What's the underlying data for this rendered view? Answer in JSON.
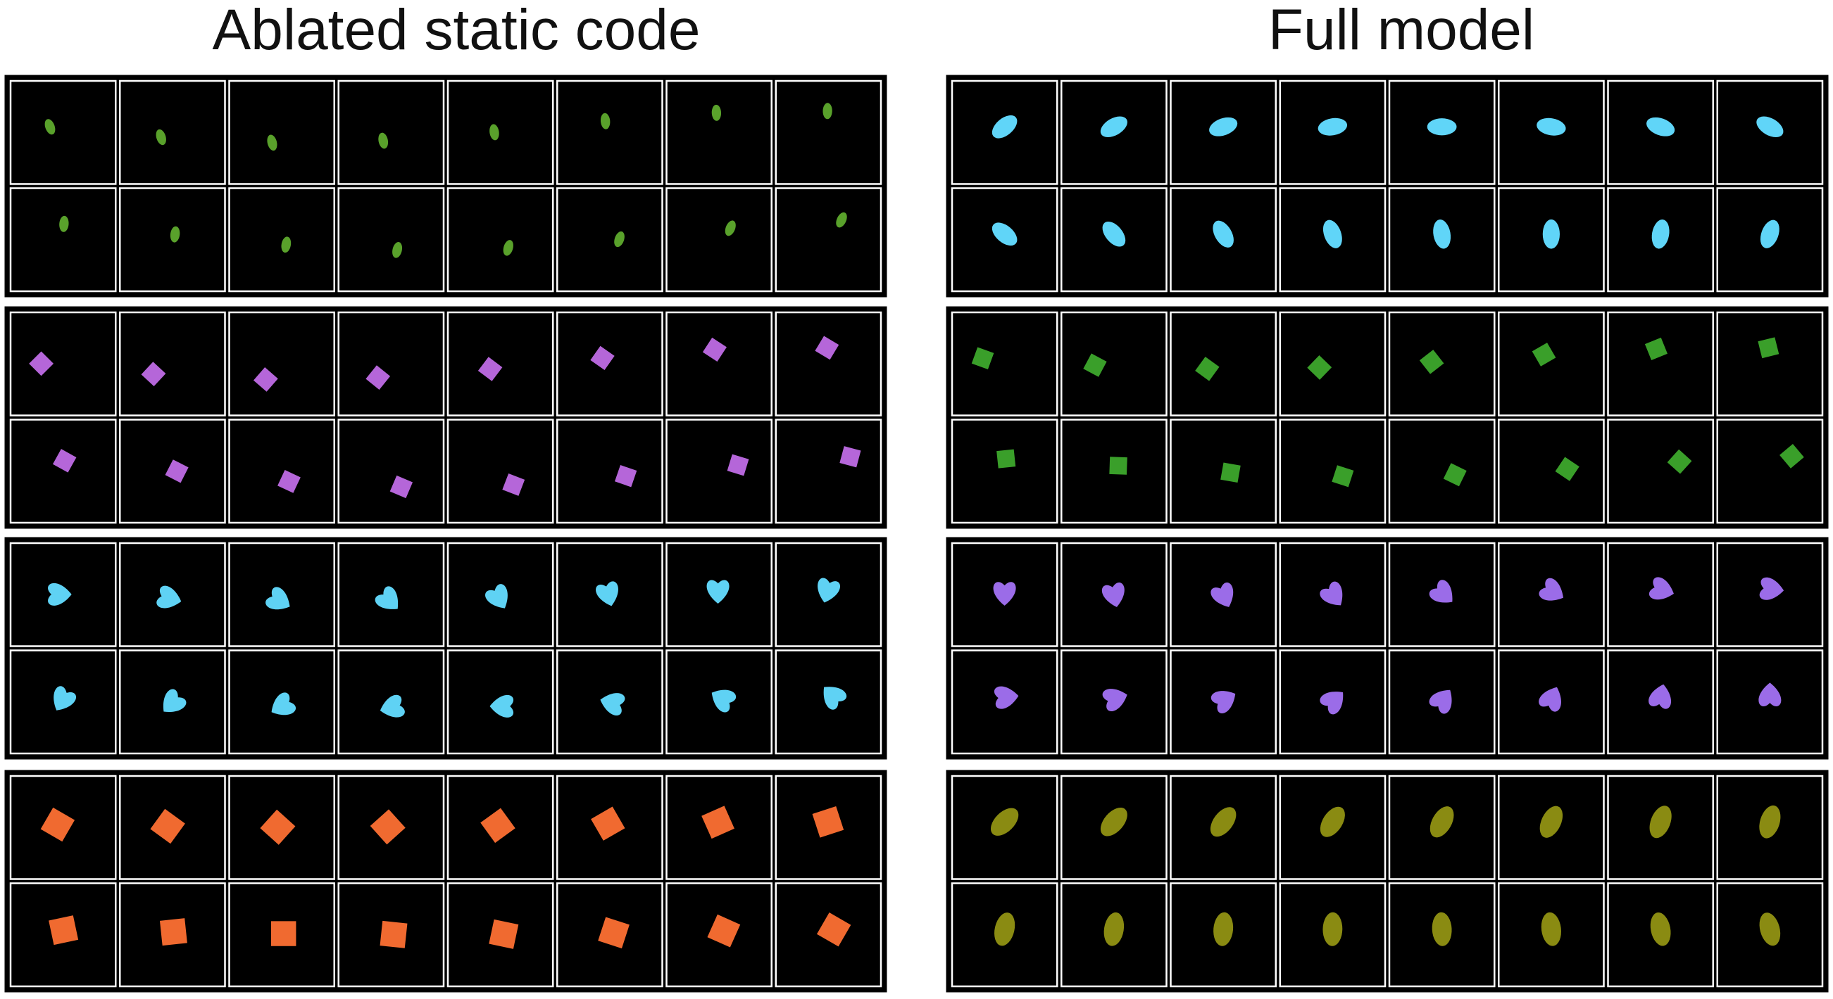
{
  "panels": [
    {
      "title": "Ablated static code"
    },
    {
      "title": "Full model"
    }
  ]
}
